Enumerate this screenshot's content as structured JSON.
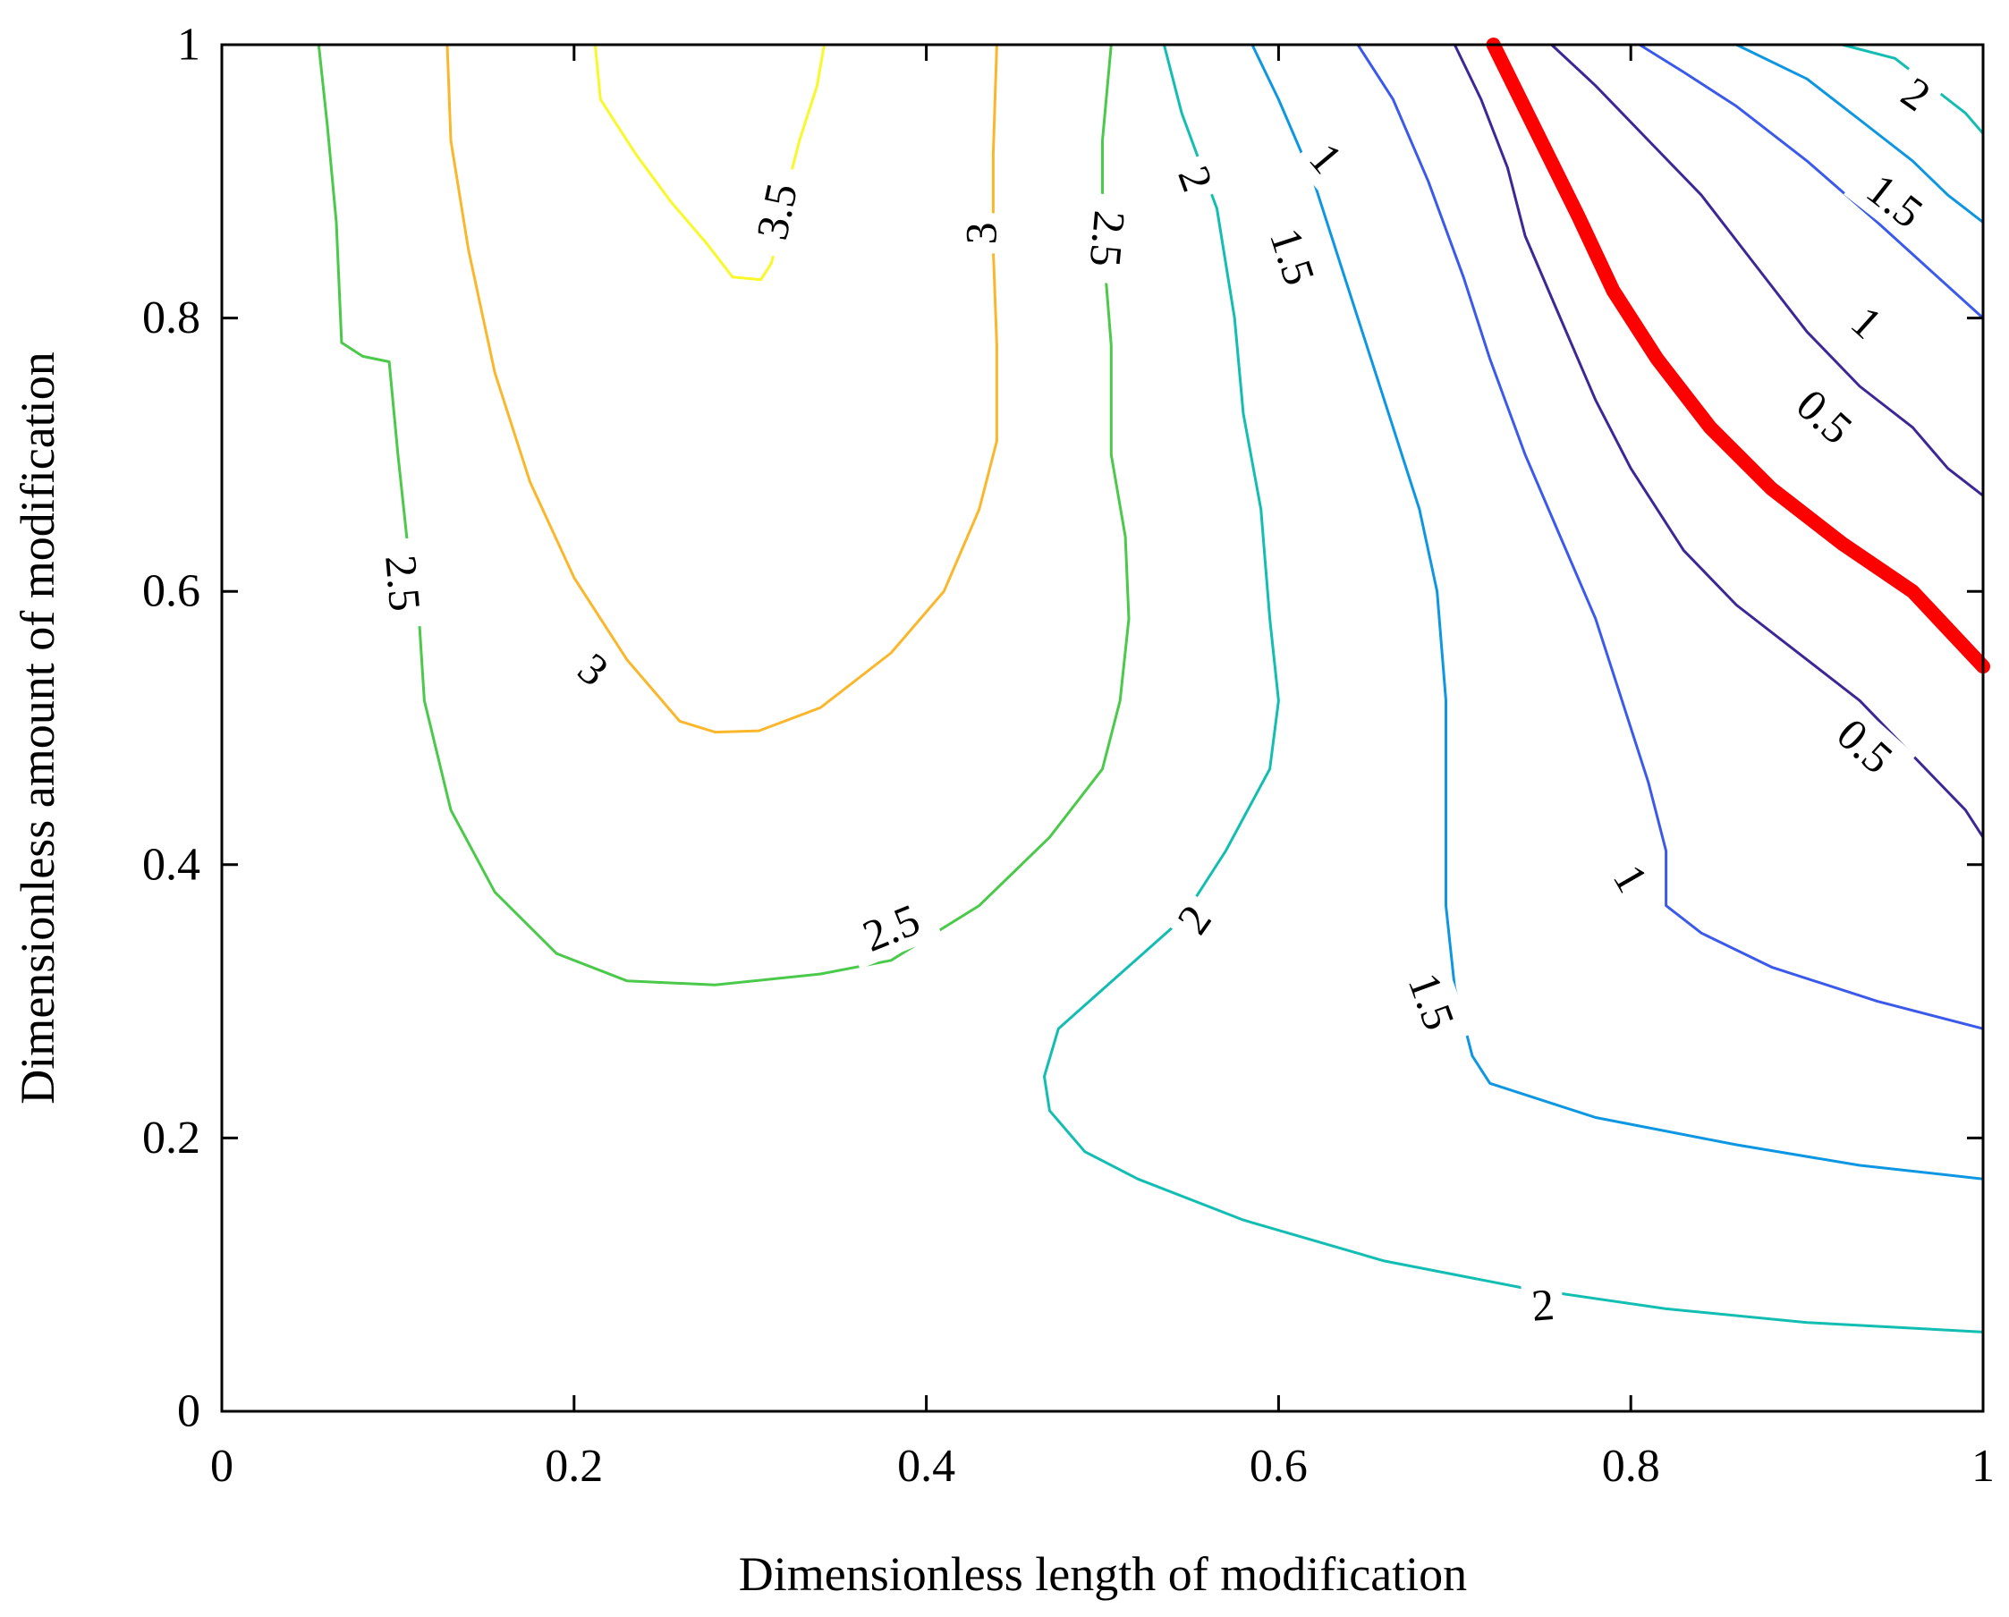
{
  "chart_data": {
    "type": "contour",
    "title": "",
    "xlabel": "Dimensionless length of modification",
    "ylabel": "Dimensionless amount of modification",
    "xlim": [
      0,
      1
    ],
    "ylim": [
      0,
      1
    ],
    "x_ticks": [
      {
        "value": 0,
        "label": "0"
      },
      {
        "value": 0.2,
        "label": "0.2"
      },
      {
        "value": 0.4,
        "label": "0.4"
      },
      {
        "value": 0.6,
        "label": "0.6"
      },
      {
        "value": 0.8,
        "label": "0.8"
      },
      {
        "value": 1,
        "label": "1"
      }
    ],
    "y_ticks": [
      {
        "value": 0,
        "label": "0"
      },
      {
        "value": 0.2,
        "label": "0.2"
      },
      {
        "value": 0.4,
        "label": "0.4"
      },
      {
        "value": 0.6,
        "label": "0.6"
      },
      {
        "value": 0.8,
        "label": "0.8"
      },
      {
        "value": 1,
        "label": "1"
      }
    ],
    "grid": false,
    "colors": {
      "3.5": "#f8f82a",
      "3": "#fbb72b",
      "2.5": "#4ac94a",
      "2": "#12bdb2",
      "1.5": "#0d96e2",
      "1": "#3b5aeb",
      "0.5": "#3d2796",
      "highlight": "#ff0000"
    },
    "contours": [
      {
        "level": "3.5",
        "points": [
          [
            0.212,
            1.0
          ],
          [
            0.215,
            0.96
          ],
          [
            0.235,
            0.92
          ],
          [
            0.255,
            0.885
          ],
          [
            0.275,
            0.855
          ],
          [
            0.29,
            0.83
          ],
          [
            0.306,
            0.828
          ],
          [
            0.312,
            0.84
          ],
          [
            0.318,
            0.87
          ],
          [
            0.322,
            0.9
          ],
          [
            0.328,
            0.93
          ],
          [
            0.338,
            0.97
          ],
          [
            0.342,
            1.0
          ]
        ]
      },
      {
        "level": "3",
        "points": [
          [
            0.128,
            1.0
          ],
          [
            0.13,
            0.93
          ],
          [
            0.14,
            0.85
          ],
          [
            0.155,
            0.76
          ],
          [
            0.175,
            0.68
          ],
          [
            0.2,
            0.61
          ],
          [
            0.23,
            0.55
          ],
          [
            0.26,
            0.505
          ],
          [
            0.28,
            0.497
          ],
          [
            0.305,
            0.498
          ],
          [
            0.34,
            0.515
          ],
          [
            0.38,
            0.555
          ],
          [
            0.41,
            0.6
          ],
          [
            0.43,
            0.66
          ],
          [
            0.44,
            0.71
          ],
          [
            0.44,
            0.78
          ],
          [
            0.438,
            0.85
          ],
          [
            0.438,
            0.92
          ],
          [
            0.44,
            1.0
          ]
        ]
      },
      {
        "level": "2.5",
        "points": [
          [
            0.055,
            1.0
          ],
          [
            0.06,
            0.94
          ],
          [
            0.065,
            0.87
          ],
          [
            0.068,
            0.782
          ],
          [
            0.08,
            0.772
          ],
          [
            0.095,
            0.768
          ],
          [
            0.1,
            0.7
          ],
          [
            0.105,
            0.64
          ],
          [
            0.112,
            0.58
          ],
          [
            0.115,
            0.52
          ],
          [
            0.13,
            0.44
          ],
          [
            0.155,
            0.38
          ],
          [
            0.19,
            0.335
          ],
          [
            0.23,
            0.315
          ],
          [
            0.28,
            0.312
          ],
          [
            0.34,
            0.32
          ],
          [
            0.38,
            0.33
          ],
          [
            0.43,
            0.37
          ],
          [
            0.47,
            0.42
          ],
          [
            0.5,
            0.47
          ],
          [
            0.51,
            0.52
          ],
          [
            0.515,
            0.58
          ],
          [
            0.513,
            0.64
          ],
          [
            0.505,
            0.7
          ],
          [
            0.505,
            0.78
          ],
          [
            0.5,
            0.86
          ],
          [
            0.5,
            0.93
          ],
          [
            0.505,
            1.0
          ]
        ]
      },
      {
        "level": "2",
        "points": [
          [
            0.535,
            1.0
          ],
          [
            0.545,
            0.95
          ],
          [
            0.565,
            0.88
          ],
          [
            0.575,
            0.8
          ],
          [
            0.58,
            0.73
          ],
          [
            0.59,
            0.66
          ],
          [
            0.595,
            0.58
          ],
          [
            0.6,
            0.52
          ],
          [
            0.595,
            0.47
          ],
          [
            0.57,
            0.41
          ],
          [
            0.545,
            0.36
          ],
          [
            0.51,
            0.32
          ],
          [
            0.475,
            0.28
          ],
          [
            0.467,
            0.245
          ],
          [
            0.47,
            0.22
          ],
          [
            0.49,
            0.19
          ],
          [
            0.52,
            0.17
          ],
          [
            0.58,
            0.14
          ],
          [
            0.66,
            0.11
          ],
          [
            0.74,
            0.09
          ],
          [
            0.82,
            0.075
          ],
          [
            0.9,
            0.065
          ],
          [
            1.0,
            0.058
          ]
        ]
      },
      {
        "level": "1.5",
        "points": [
          [
            0.585,
            1.0
          ],
          [
            0.6,
            0.96
          ],
          [
            0.62,
            0.9
          ],
          [
            0.635,
            0.84
          ],
          [
            0.65,
            0.78
          ],
          [
            0.665,
            0.72
          ],
          [
            0.68,
            0.66
          ],
          [
            0.69,
            0.6
          ],
          [
            0.695,
            0.52
          ],
          [
            0.695,
            0.44
          ],
          [
            0.695,
            0.37
          ],
          [
            0.7,
            0.31
          ],
          [
            0.71,
            0.26
          ],
          [
            0.72,
            0.24
          ],
          [
            0.78,
            0.215
          ],
          [
            0.86,
            0.195
          ],
          [
            0.93,
            0.18
          ],
          [
            1.0,
            0.17
          ]
        ]
      },
      {
        "level": "1",
        "points": [
          [
            0.645,
            1.0
          ],
          [
            0.665,
            0.96
          ],
          [
            0.685,
            0.9
          ],
          [
            0.705,
            0.83
          ],
          [
            0.72,
            0.77
          ],
          [
            0.74,
            0.7
          ],
          [
            0.76,
            0.64
          ],
          [
            0.78,
            0.58
          ],
          [
            0.795,
            0.52
          ],
          [
            0.81,
            0.46
          ],
          [
            0.82,
            0.41
          ],
          [
            0.82,
            0.37
          ],
          [
            0.84,
            0.35
          ],
          [
            0.88,
            0.325
          ],
          [
            0.94,
            0.3
          ],
          [
            1.0,
            0.28
          ]
        ]
      },
      {
        "level": "0.5",
        "points": [
          [
            0.7,
            1.0
          ],
          [
            0.715,
            0.96
          ],
          [
            0.73,
            0.91
          ],
          [
            0.74,
            0.86
          ],
          [
            0.76,
            0.8
          ],
          [
            0.78,
            0.74
          ],
          [
            0.8,
            0.69
          ],
          [
            0.83,
            0.63
          ],
          [
            0.86,
            0.59
          ],
          [
            0.89,
            0.56
          ],
          [
            0.93,
            0.52
          ],
          [
            0.96,
            0.48
          ],
          [
            0.99,
            0.44
          ],
          [
            1.0,
            0.42
          ]
        ]
      },
      {
        "level": "0.5",
        "points": [
          [
            0.755,
            1.0
          ],
          [
            0.78,
            0.97
          ],
          [
            0.81,
            0.93
          ],
          [
            0.84,
            0.89
          ],
          [
            0.87,
            0.84
          ],
          [
            0.9,
            0.79
          ],
          [
            0.93,
            0.75
          ],
          [
            0.96,
            0.72
          ],
          [
            0.98,
            0.69
          ],
          [
            1.0,
            0.67
          ]
        ]
      },
      {
        "level": "1",
        "points": [
          [
            0.805,
            1.0
          ],
          [
            0.83,
            0.98
          ],
          [
            0.86,
            0.955
          ],
          [
            0.9,
            0.915
          ],
          [
            0.94,
            0.87
          ],
          [
            0.97,
            0.835
          ],
          [
            1.0,
            0.8
          ]
        ]
      },
      {
        "level": "1.5",
        "points": [
          [
            0.86,
            1.0
          ],
          [
            0.9,
            0.975
          ],
          [
            0.93,
            0.945
          ],
          [
            0.96,
            0.915
          ],
          [
            0.98,
            0.89
          ],
          [
            1.0,
            0.87
          ]
        ]
      },
      {
        "level": "2",
        "points": [
          [
            0.92,
            1.0
          ],
          [
            0.95,
            0.99
          ],
          [
            0.975,
            0.965
          ],
          [
            0.99,
            0.95
          ],
          [
            1.0,
            0.935
          ]
        ]
      }
    ],
    "highlight_curve": {
      "points": [
        [
          0.722,
          1.0
        ],
        [
          0.745,
          0.94
        ],
        [
          0.77,
          0.875
        ],
        [
          0.79,
          0.82
        ],
        [
          0.815,
          0.77
        ],
        [
          0.845,
          0.72
        ],
        [
          0.88,
          0.675
        ],
        [
          0.92,
          0.635
        ],
        [
          0.96,
          0.6
        ],
        [
          1.0,
          0.545
        ]
      ]
    },
    "contour_labels": [
      {
        "text": "3.5",
        "x": 0.315,
        "y": 0.878,
        "angle": -78
      },
      {
        "text": "3",
        "x": 0.431,
        "y": 0.862,
        "angle": -90
      },
      {
        "text": "2.5",
        "x": 0.503,
        "y": 0.858,
        "angle": 95
      },
      {
        "text": "2",
        "x": 0.553,
        "y": 0.902,
        "angle": 70
      },
      {
        "text": "1",
        "x": 0.627,
        "y": 0.917,
        "angle": 50
      },
      {
        "text": "1.5",
        "x": 0.608,
        "y": 0.845,
        "angle": 72
      },
      {
        "text": "2.5",
        "x": 0.103,
        "y": 0.606,
        "angle": 85
      },
      {
        "text": "3",
        "x": 0.211,
        "y": 0.543,
        "angle": 40
      },
      {
        "text": "2.5",
        "x": 0.38,
        "y": 0.354,
        "angle": -22
      },
      {
        "text": "2",
        "x": 0.552,
        "y": 0.36,
        "angle": -55
      },
      {
        "text": "1.5",
        "x": 0.687,
        "y": 0.3,
        "angle": 70
      },
      {
        "text": "1",
        "x": 0.8,
        "y": 0.39,
        "angle": 60
      },
      {
        "text": "2",
        "x": 0.75,
        "y": 0.078,
        "angle": -5
      },
      {
        "text": "0.5",
        "x": 0.933,
        "y": 0.487,
        "angle": 42
      },
      {
        "text": "0.5",
        "x": 0.91,
        "y": 0.728,
        "angle": 42
      },
      {
        "text": "1",
        "x": 0.934,
        "y": 0.797,
        "angle": 42
      },
      {
        "text": "1.5",
        "x": 0.95,
        "y": 0.886,
        "angle": 38
      },
      {
        "text": "2",
        "x": 0.962,
        "y": 0.964,
        "angle": 35
      }
    ]
  }
}
